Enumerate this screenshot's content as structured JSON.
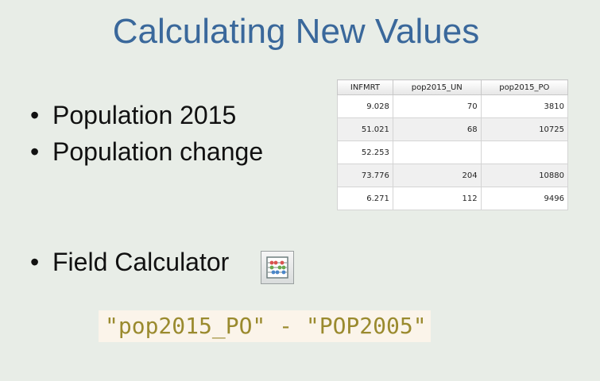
{
  "slide": {
    "title": "Calculating New Values",
    "bullets": [
      {
        "text": "Population 2015"
      },
      {
        "text": "Population change"
      }
    ],
    "bullet_symbol": "•",
    "field_calculator": {
      "label": "Field Calculator",
      "icon": "abacus-icon"
    },
    "expression": "\"pop2015_PO\" - \"POP2005\"",
    "colors": {
      "background": "#e8ede7",
      "title": "#3a689b",
      "expression_text": "#9a8a2e",
      "expression_bg": "#fbf4ea"
    }
  },
  "table": {
    "headers": [
      "INFMRT",
      "pop2015_UN",
      "pop2015_PO"
    ],
    "rows": [
      [
        "9.028",
        "70",
        "3810"
      ],
      [
        "51.021",
        "68",
        "10725"
      ],
      [
        "52.253",
        "",
        ""
      ],
      [
        "73.776",
        "204",
        "10880"
      ],
      [
        "6.271",
        "112",
        "9496"
      ]
    ]
  }
}
